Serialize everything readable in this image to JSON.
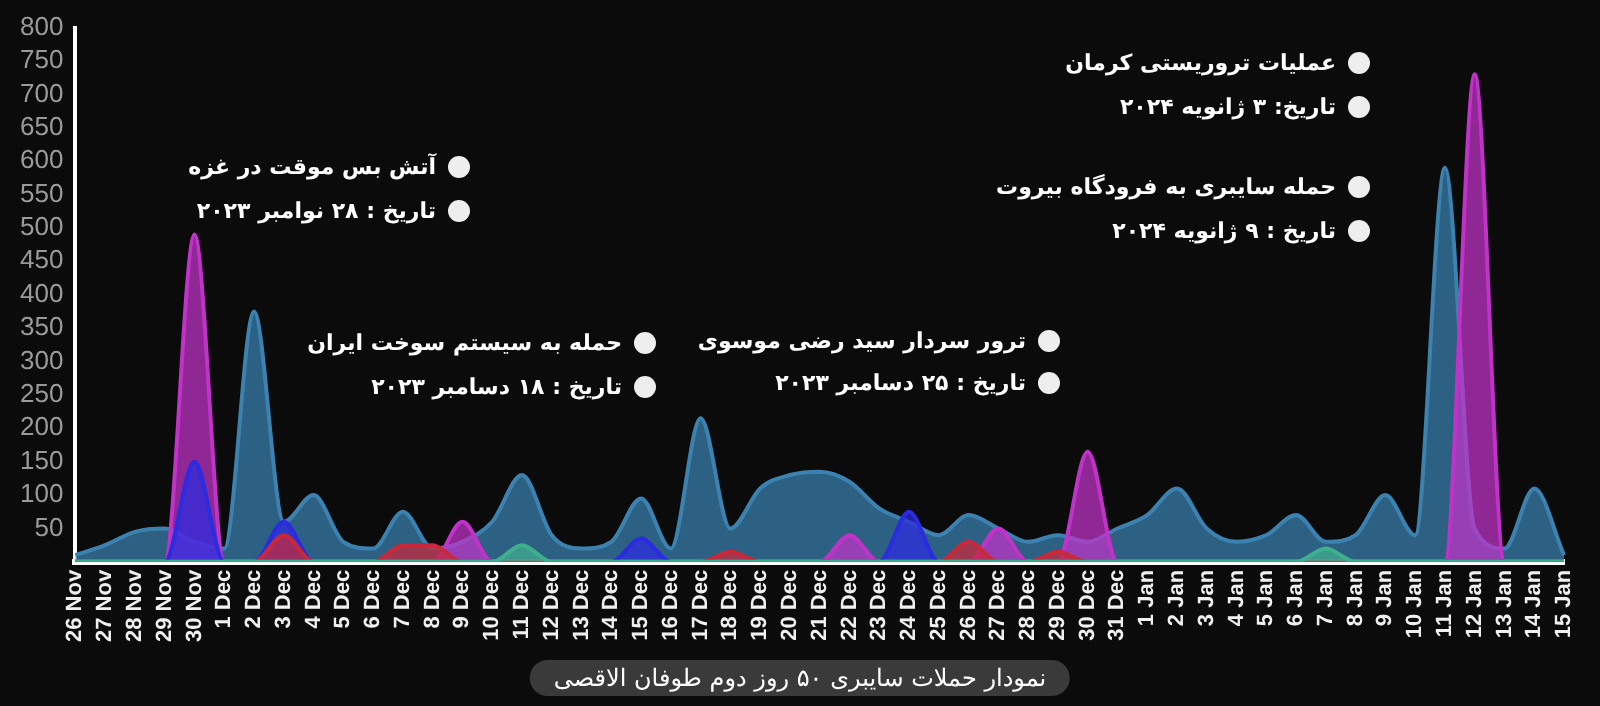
{
  "chart_data": {
    "type": "area",
    "title": "نمودار حملات سایبری ۵۰ روز دوم طوفان الاقصی",
    "categories": [
      "26 Nov",
      "27 Nov",
      "28 Nov",
      "29 Nov",
      "30 Nov",
      "1 Dec",
      "2 Dec",
      "3 Dec",
      "4 Dec",
      "5 Dec",
      "6 Dec",
      "7 Dec",
      "8 Dec",
      "9 Dec",
      "10 Dec",
      "11 Dec",
      "12 Dec",
      "13 Dec",
      "14 Dec",
      "15 Dec",
      "16 Dec",
      "17 Dec",
      "18 Dec",
      "19 Dec",
      "20 Dec",
      "21 Dec",
      "22 Dec",
      "23 Dec",
      "24 Dec",
      "25 Dec",
      "26 Dec",
      "27 Dec",
      "28 Dec",
      "29 Dec",
      "30 Dec",
      "31 Dec",
      "1 Jan",
      "2 Jan",
      "3 Jan",
      "4 Jan",
      "5 Jan",
      "6 Jan",
      "7 Jan",
      "8 Jan",
      "9 Jan",
      "10 Jan",
      "11 Jan",
      "12 Jan",
      "13 Jan",
      "14 Jan",
      "15 Jan"
    ],
    "series": [
      {
        "color": "#3b82b0",
        "values": [
          10,
          25,
          45,
          50,
          30,
          20,
          375,
          60,
          100,
          30,
          20,
          75,
          20,
          30,
          60,
          130,
          40,
          20,
          30,
          95,
          20,
          215,
          50,
          110,
          130,
          135,
          120,
          80,
          60,
          40,
          70,
          50,
          30,
          40,
          30,
          50,
          70,
          110,
          50,
          30,
          40,
          70,
          30,
          40,
          100,
          40,
          590,
          50,
          20,
          110,
          10
        ]
      },
      {
        "color": "#c032c8",
        "values": [
          0,
          0,
          0,
          0,
          490,
          0,
          0,
          0,
          0,
          0,
          0,
          0,
          0,
          60,
          0,
          0,
          0,
          0,
          0,
          0,
          0,
          0,
          0,
          0,
          0,
          0,
          40,
          0,
          0,
          0,
          0,
          50,
          0,
          0,
          165,
          0,
          0,
          0,
          0,
          0,
          0,
          0,
          0,
          0,
          0,
          0,
          0,
          730,
          0,
          0,
          0
        ]
      },
      {
        "color": "#2b2be0",
        "values": [
          0,
          0,
          0,
          0,
          150,
          0,
          0,
          60,
          0,
          0,
          0,
          0,
          0,
          0,
          0,
          0,
          0,
          0,
          0,
          35,
          0,
          0,
          0,
          0,
          0,
          0,
          0,
          0,
          75,
          0,
          0,
          0,
          0,
          0,
          0,
          0,
          0,
          0,
          0,
          0,
          0,
          0,
          0,
          0,
          0,
          0,
          0,
          0,
          0,
          0,
          0
        ]
      },
      {
        "color": "#c8283a",
        "values": [
          0,
          0,
          0,
          0,
          0,
          0,
          0,
          40,
          0,
          0,
          0,
          25,
          25,
          0,
          0,
          0,
          0,
          0,
          0,
          0,
          0,
          0,
          15,
          0,
          0,
          0,
          0,
          0,
          0,
          0,
          30,
          0,
          0,
          15,
          0,
          0,
          0,
          0,
          0,
          0,
          0,
          0,
          0,
          0,
          0,
          0,
          0,
          0,
          0,
          0,
          0
        ]
      },
      {
        "color": "#3fb08f",
        "values": [
          0,
          0,
          0,
          0,
          0,
          0,
          0,
          0,
          0,
          0,
          0,
          0,
          0,
          0,
          0,
          25,
          0,
          0,
          0,
          0,
          0,
          0,
          0,
          0,
          0,
          0,
          0,
          0,
          0,
          0,
          0,
          0,
          0,
          0,
          0,
          0,
          0,
          0,
          0,
          0,
          0,
          0,
          20,
          0,
          0,
          0,
          0,
          0,
          0,
          0,
          0
        ]
      }
    ],
    "ylim": [
      0,
      800
    ],
    "yticks": [
      50,
      100,
      150,
      200,
      250,
      300,
      350,
      400,
      450,
      500,
      550,
      600,
      650,
      700,
      750,
      800
    ],
    "grid": false,
    "legend": false,
    "annotations": [
      "آتش بس موقت در غزه",
      "تاریخ : ۲۸ نوامبر ۲۰۲۳",
      "حمله به سیستم سوخت ایران",
      "تاریخ : ۱۸ دسامبر ۲۰۲۳",
      "ترور سردار سید رضی موسوی",
      "تاریخ : ۲۵ دسامبر ۲۰۲۳",
      "عملیات تروریستی کرمان",
      "تاریخ: ۳ ژانویه ۲۰۲۴",
      "حمله سایبری به فرودگاه بیروت",
      "تاریخ : ۹ ژانویه ۲۰۲۴"
    ]
  }
}
